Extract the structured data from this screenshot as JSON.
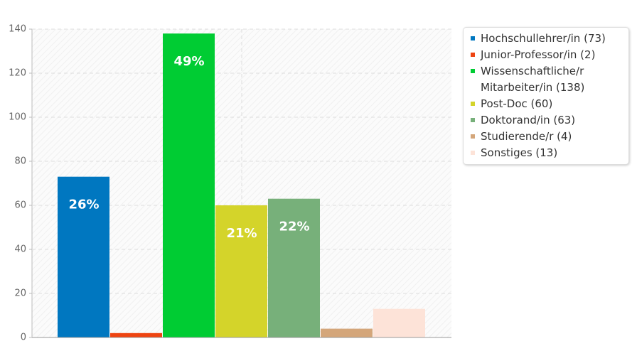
{
  "chart_data": {
    "type": "bar",
    "series": [
      {
        "name": "Hochschullehrer/in (73)",
        "color": "#0077c0",
        "values": [
          73
        ]
      },
      {
        "name": "Junior-Professor/in (2)",
        "color": "#ee4411",
        "values": [
          2
        ]
      },
      {
        "name": "Wissenschaftliche/r Mitarbeiter/in (138)",
        "color": "#00cc33",
        "values": [
          138
        ]
      },
      {
        "name": "Post-Doc (60)",
        "color": "#d4d42a",
        "values": [
          60
        ]
      },
      {
        "name": "Doktorand/in (63)",
        "color": "#77b07a",
        "values": [
          63
        ]
      },
      {
        "name": "Studierende/r (4)",
        "color": "#d4a67a",
        "values": [
          4
        ]
      },
      {
        "name": "Sonstiges (13)",
        "color": "#fde3d8",
        "values": [
          13
        ]
      }
    ],
    "share_labels": [
      "26%",
      null,
      "49%",
      "21%",
      "22%",
      null,
      null
    ],
    "ylim": [
      0,
      140
    ],
    "yticks": [
      0,
      20,
      40,
      60,
      80,
      100,
      120,
      140
    ],
    "grid": true,
    "legend": "right"
  }
}
